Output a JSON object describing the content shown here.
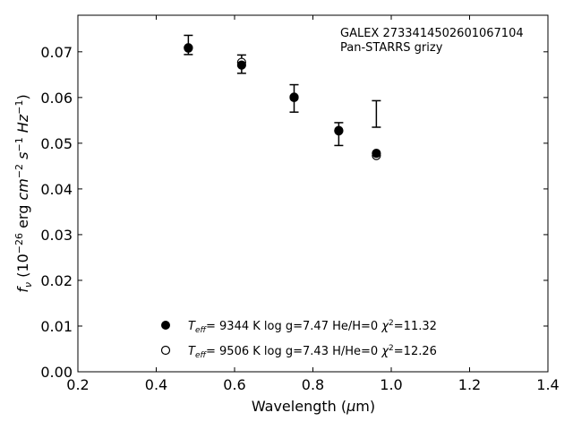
{
  "chart_data": {
    "type": "scatter",
    "title": "",
    "xlabel": "Wavelength (μm)",
    "ylabel": "f_ν (10^-26 erg cm^-2 s^-1 Hz^-1)",
    "xlim": [
      0.2,
      1.4
    ],
    "ylim": [
      0.0,
      0.078
    ],
    "xticks": [
      0.2,
      0.4,
      0.6,
      0.8,
      1.0,
      1.2,
      1.4
    ],
    "xtick_labels": [
      "0.2",
      "0.4",
      "0.6",
      "0.8",
      "1.0",
      "1.2",
      "1.4"
    ],
    "yticks": [
      0.0,
      0.01,
      0.02,
      0.03,
      0.04,
      0.05,
      0.06,
      0.07
    ],
    "ytick_labels": [
      "0.00",
      "0.01",
      "0.02",
      "0.03",
      "0.04",
      "0.05",
      "0.06",
      "0.07"
    ],
    "grid": false,
    "annotation": [
      "GALEX 2733414502601067104",
      "Pan-STARRS grizy"
    ],
    "observed": {
      "x": [
        0.482,
        0.618,
        0.752,
        0.866,
        0.962
      ],
      "y": [
        0.0715,
        0.0673,
        0.0598,
        0.052,
        0.0564
      ],
      "err": [
        0.0021,
        0.002,
        0.003,
        0.0025,
        0.0029
      ]
    },
    "series": [
      {
        "name": "Teff= 9344 K log g=7.47 He/H=0 χ²=11.32",
        "marker": "filled",
        "x": [
          0.482,
          0.618,
          0.752,
          0.866,
          0.962
        ],
        "y": [
          0.0708,
          0.0671,
          0.06,
          0.0528,
          0.0478
        ]
      },
      {
        "name": "Teff= 9506 K log g=7.43 H/He=0 χ²=12.26",
        "marker": "open",
        "x": [
          0.482,
          0.618,
          0.752,
          0.866,
          0.962
        ],
        "y": [
          0.0709,
          0.0677,
          0.0601,
          0.0527,
          0.0473
        ]
      }
    ],
    "legend": {
      "placement": "lower-center",
      "entries": [
        {
          "teff": "9344 K",
          "logg": "log g=7.47",
          "comp": "He/H=0",
          "chi": "=11.32"
        },
        {
          "teff": "9506 K",
          "logg": "log g=7.43",
          "comp": "H/He=0",
          "chi": "=12.26"
        }
      ]
    },
    "colors": {
      "marker": "#000000",
      "axes": "#000000",
      "background": "#ffffff"
    }
  }
}
